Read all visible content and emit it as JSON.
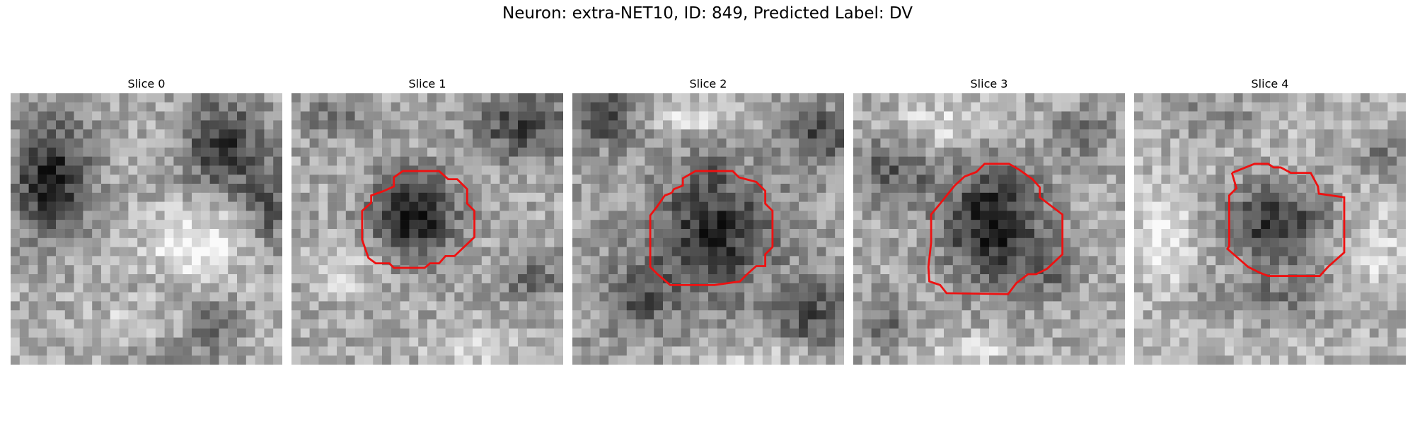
{
  "figure": {
    "title": "Neuron: extra-NET10, ID: 849, Predicted Label: DV",
    "contour_color": "#ee1111"
  },
  "panels": [
    {
      "title": "Slice 0",
      "has_contour": false,
      "image_desc": "grayscale EM patch"
    },
    {
      "title": "Slice 1",
      "has_contour": true,
      "image_desc": "grayscale EM patch"
    },
    {
      "title": "Slice 2",
      "has_contour": true,
      "image_desc": "grayscale EM patch"
    },
    {
      "title": "Slice 3",
      "has_contour": true,
      "image_desc": "grayscale EM patch"
    },
    {
      "title": "Slice 4",
      "has_contour": true,
      "image_desc": "grayscale EM patch"
    }
  ]
}
